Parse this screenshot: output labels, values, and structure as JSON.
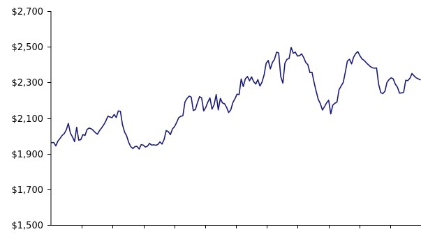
{
  "chart_data": {
    "type": "line",
    "title": "",
    "xlabel": "",
    "ylabel": "",
    "ylim": [
      1500,
      2700
    ],
    "y_ticks": [
      1500,
      1700,
      1900,
      2100,
      2300,
      2500,
      2700
    ],
    "y_tick_labels": [
      "$1,500",
      "$1,700",
      "$1,900",
      "$2,100",
      "$2,300",
      "$2,500",
      "$2,700"
    ],
    "x_tick_count": 12,
    "grid": false,
    "legend": "none",
    "line_color": "#1a1a7a",
    "series": [
      {
        "values": [
          1962,
          1963,
          1944,
          1971,
          1985,
          2002,
          2012,
          2033,
          2070,
          2015,
          1994,
          1968,
          2048,
          1976,
          1979,
          2007,
          2002,
          2036,
          2044,
          2040,
          2030,
          2018,
          2009,
          2030,
          2045,
          2062,
          2083,
          2110,
          2106,
          2102,
          2120,
          2103,
          2140,
          2138,
          2063,
          2022,
          2000,
          1963,
          1939,
          1929,
          1940,
          1941,
          1926,
          1951,
          1948,
          1937,
          1942,
          1958,
          1948,
          1950,
          1947,
          1952,
          1966,
          1954,
          1980,
          2030,
          2024,
          2007,
          2039,
          2052,
          2075,
          2102,
          2110,
          2113,
          2190,
          2210,
          2223,
          2218,
          2142,
          2148,
          2186,
          2220,
          2213,
          2140,
          2160,
          2190,
          2213,
          2150,
          2175,
          2232,
          2146,
          2210,
          2185,
          2180,
          2160,
          2131,
          2146,
          2187,
          2208,
          2234,
          2232,
          2319,
          2277,
          2320,
          2333,
          2309,
          2331,
          2304,
          2291,
          2316,
          2280,
          2302,
          2342,
          2408,
          2423,
          2376,
          2412,
          2430,
          2470,
          2465,
          2333,
          2296,
          2408,
          2430,
          2434,
          2496,
          2464,
          2470,
          2448,
          2450,
          2460,
          2440,
          2412,
          2400,
          2355,
          2357,
          2300,
          2250,
          2205,
          2181,
          2145,
          2164,
          2185,
          2200,
          2123,
          2173,
          2183,
          2190,
          2260,
          2280,
          2300,
          2358,
          2420,
          2430,
          2404,
          2442,
          2462,
          2473,
          2450,
          2432,
          2424,
          2411,
          2400,
          2389,
          2382,
          2380,
          2381,
          2290,
          2243,
          2237,
          2250,
          2300,
          2316,
          2326,
          2320,
          2290,
          2274,
          2240,
          2241,
          2244,
          2312,
          2310,
          2323,
          2350,
          2337,
          2326,
          2320,
          2315
        ]
      }
    ]
  }
}
